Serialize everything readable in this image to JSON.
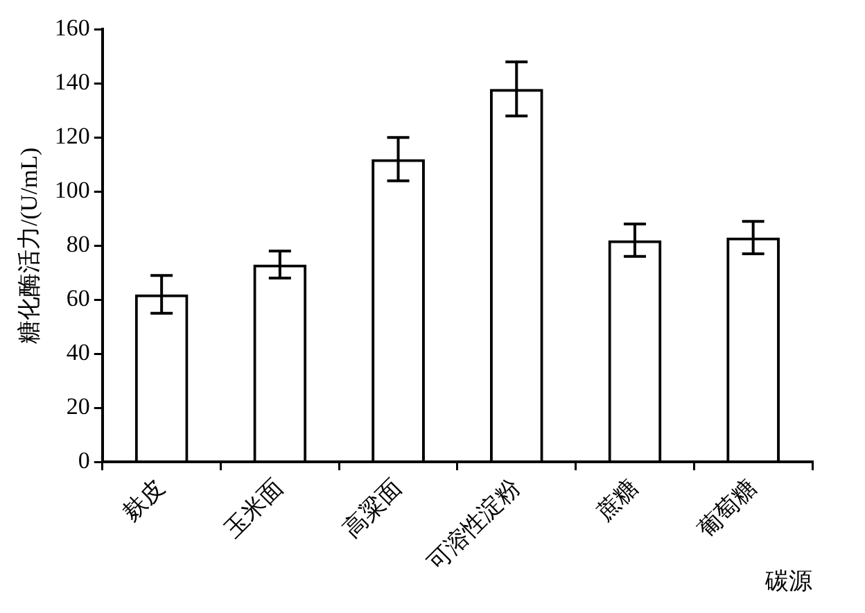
{
  "chart_data": {
    "type": "bar",
    "xlabel": "碳源",
    "ylabel": "糖化酶活力/(U/mL)",
    "categories": [
      "麸皮",
      "玉米面",
      "高粱面",
      "可溶性淀粉",
      "蔗糖",
      "葡萄糖"
    ],
    "values": [
      62,
      73,
      112,
      138,
      82,
      83
    ],
    "errors": [
      7,
      5,
      8,
      10,
      6,
      6
    ],
    "color": "#000000",
    "ylim": [
      0,
      160
    ],
    "yticks": [
      0,
      20,
      40,
      60,
      80,
      100,
      120,
      140,
      160
    ]
  }
}
